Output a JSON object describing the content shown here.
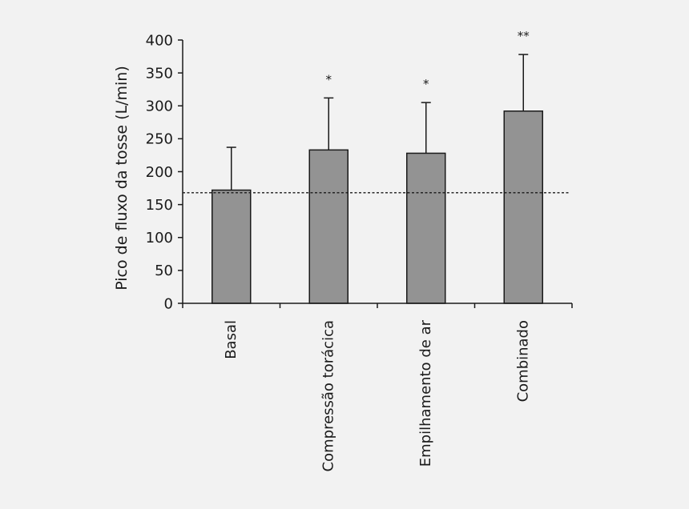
{
  "chart_data": {
    "type": "bar",
    "categories": [
      "Basal",
      "Compressão torácica",
      "Empilhamento de ar",
      "Combinado"
    ],
    "values": [
      172,
      233,
      228,
      292
    ],
    "error_upper": [
      237,
      312,
      305,
      378
    ],
    "annotations": [
      "",
      "*",
      "*",
      "**"
    ],
    "reference_line": 168,
    "title": "",
    "xlabel": "",
    "ylabel": "Pico de fluxo da tosse (L/min)",
    "ylim": [
      0,
      400
    ],
    "yticks": [
      0,
      50,
      100,
      150,
      200,
      250,
      300,
      350,
      400
    ],
    "grid": false,
    "legend": "none",
    "colors": {
      "bar": "#939393",
      "stroke": "#1a1a1a",
      "background": "#f2f2f2"
    }
  }
}
